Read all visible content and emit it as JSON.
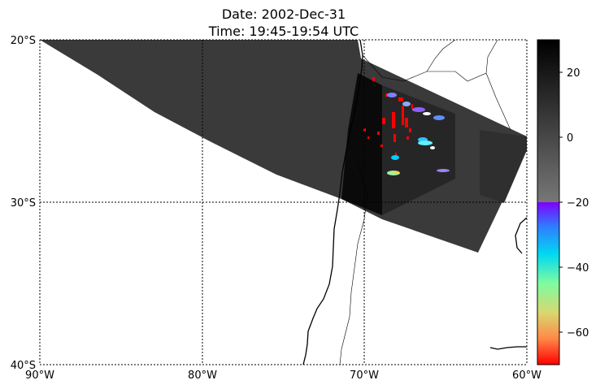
{
  "title": {
    "line1": "Date: 2002-Dec-31",
    "line2": "Time: 19:45-19:54 UTC"
  },
  "map": {
    "lon_ticks": [
      "90°W",
      "80°W",
      "70°W",
      "60°W"
    ],
    "lat_ticks": [
      "20°S",
      "30°S",
      "40°S"
    ],
    "extent": {
      "lon": [
        -90,
        -60
      ],
      "lat": [
        -40,
        -20
      ]
    },
    "gridlines": "dotted"
  },
  "colorbar": {
    "ticks": [
      "20",
      "0",
      "−20",
      "−40",
      "−60"
    ],
    "range": [
      -70,
      30
    ],
    "upper_scale": "grayscale",
    "lower_scale": "rainbow"
  }
}
